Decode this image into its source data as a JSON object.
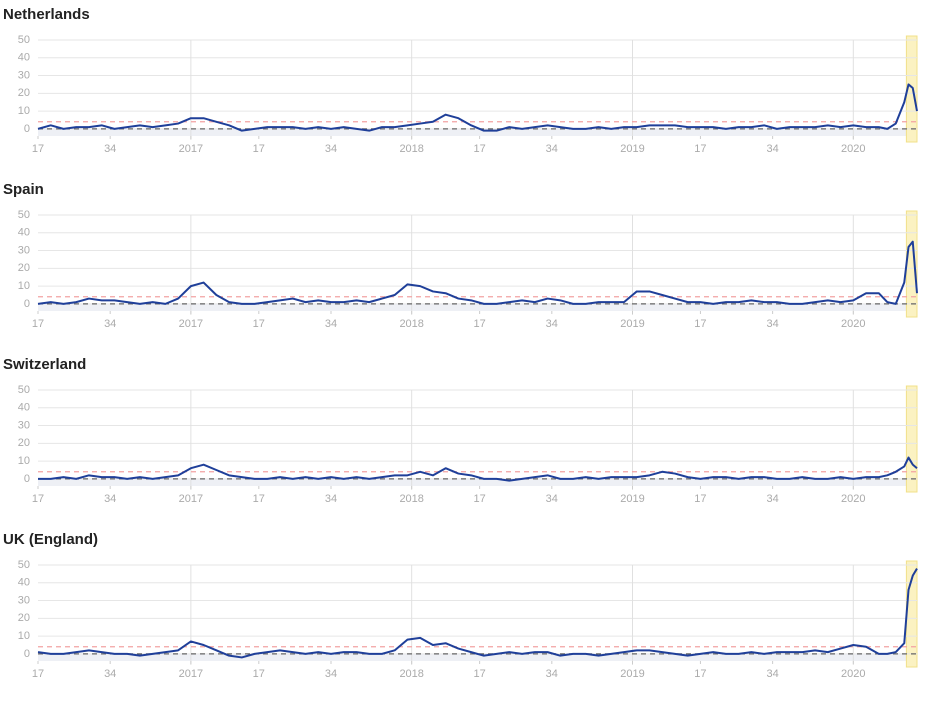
{
  "chart_data": [
    {
      "type": "line",
      "title": "Netherlands",
      "color": "#1f3f99",
      "xlim": [
        0,
        207
      ],
      "ylim": [
        -4,
        50
      ],
      "yticks": [
        0,
        10,
        20,
        30,
        40,
        50
      ],
      "grid": true,
      "xticks": [
        {
          "value": 0,
          "label": "17"
        },
        {
          "value": 17,
          "label": "34"
        },
        {
          "value": 36,
          "label": "2017"
        },
        {
          "value": 52,
          "label": "17"
        },
        {
          "value": 69,
          "label": "34"
        },
        {
          "value": 88,
          "label": "2018"
        },
        {
          "value": 104,
          "label": "17"
        },
        {
          "value": 121,
          "label": "34"
        },
        {
          "value": 140,
          "label": "2019"
        },
        {
          "value": 156,
          "label": "17"
        },
        {
          "value": 173,
          "label": "34"
        },
        {
          "value": 192,
          "label": "2020"
        }
      ],
      "xgrid": [
        36,
        88,
        140,
        192
      ],
      "shade_x": [
        204.5,
        207
      ],
      "shade_color": "#fbf2c2",
      "reference_lines": [
        {
          "value": 4,
          "color": "#f3a3a3"
        },
        {
          "value": 0,
          "color": "#666666"
        }
      ],
      "x": [
        0,
        3,
        6,
        9,
        12,
        15,
        18,
        21,
        24,
        27,
        30,
        33,
        36,
        39,
        42,
        45,
        48,
        51,
        54,
        57,
        60,
        63,
        66,
        69,
        72,
        75,
        78,
        81,
        84,
        87,
        90,
        93,
        96,
        99,
        102,
        105,
        108,
        111,
        114,
        117,
        120,
        123,
        126,
        129,
        132,
        135,
        138,
        141,
        144,
        147,
        150,
        153,
        156,
        159,
        162,
        165,
        168,
        171,
        174,
        177,
        180,
        183,
        186,
        189,
        192,
        195,
        198,
        200,
        202,
        204,
        205,
        206,
        207
      ],
      "values": [
        0,
        2,
        0,
        1,
        1,
        2,
        0,
        1,
        2,
        1,
        2,
        3,
        6,
        6,
        4,
        2,
        -1,
        0,
        1,
        1,
        1,
        0,
        1,
        0,
        1,
        0,
        -1,
        1,
        1,
        2,
        3,
        4,
        8,
        6,
        2,
        -1,
        -1,
        1,
        0,
        1,
        2,
        1,
        0,
        0,
        1,
        0,
        1,
        1,
        2,
        2,
        2,
        1,
        1,
        1,
        0,
        1,
        1,
        2,
        0,
        1,
        1,
        1,
        2,
        1,
        2,
        1,
        1,
        0,
        3,
        15,
        25,
        23,
        10
      ]
    },
    {
      "type": "line",
      "title": "Spain",
      "color": "#1f3f99",
      "xlim": [
        0,
        207
      ],
      "ylim": [
        -4,
        50
      ],
      "yticks": [
        0,
        10,
        20,
        30,
        40,
        50
      ],
      "grid": true,
      "xticks": [
        {
          "value": 0,
          "label": "17"
        },
        {
          "value": 17,
          "label": "34"
        },
        {
          "value": 36,
          "label": "2017"
        },
        {
          "value": 52,
          "label": "17"
        },
        {
          "value": 69,
          "label": "34"
        },
        {
          "value": 88,
          "label": "2018"
        },
        {
          "value": 104,
          "label": "17"
        },
        {
          "value": 121,
          "label": "34"
        },
        {
          "value": 140,
          "label": "2019"
        },
        {
          "value": 156,
          "label": "17"
        },
        {
          "value": 173,
          "label": "34"
        },
        {
          "value": 192,
          "label": "2020"
        }
      ],
      "xgrid": [
        36,
        88,
        140,
        192
      ],
      "shade_x": [
        204.5,
        207
      ],
      "shade_color": "#fbf2c2",
      "reference_lines": [
        {
          "value": 4,
          "color": "#f3a3a3"
        },
        {
          "value": 0,
          "color": "#666666"
        }
      ],
      "x": [
        0,
        3,
        6,
        9,
        12,
        15,
        18,
        21,
        24,
        27,
        30,
        33,
        36,
        39,
        42,
        45,
        48,
        51,
        54,
        57,
        60,
        63,
        66,
        69,
        72,
        75,
        78,
        81,
        84,
        87,
        90,
        93,
        96,
        99,
        102,
        105,
        108,
        111,
        114,
        117,
        120,
        123,
        126,
        129,
        132,
        135,
        138,
        141,
        144,
        147,
        150,
        153,
        156,
        159,
        162,
        165,
        168,
        171,
        174,
        177,
        180,
        183,
        186,
        189,
        192,
        195,
        198,
        200,
        202,
        204,
        205,
        206,
        207
      ],
      "values": [
        0,
        1,
        0,
        1,
        3,
        2,
        2,
        1,
        0,
        1,
        0,
        3,
        10,
        12,
        5,
        1,
        0,
        0,
        1,
        2,
        3,
        1,
        2,
        1,
        1,
        2,
        1,
        3,
        5,
        11,
        10,
        7,
        6,
        3,
        2,
        0,
        0,
        1,
        2,
        1,
        3,
        2,
        0,
        0,
        1,
        1,
        1,
        7,
        7,
        5,
        3,
        1,
        1,
        0,
        1,
        1,
        2,
        1,
        1,
        0,
        0,
        1,
        2,
        1,
        2,
        6,
        6,
        1,
        0,
        12,
        32,
        35,
        6
      ]
    },
    {
      "type": "line",
      "title": "Switzerland",
      "color": "#1f3f99",
      "xlim": [
        0,
        207
      ],
      "ylim": [
        -4,
        50
      ],
      "yticks": [
        0,
        10,
        20,
        30,
        40,
        50
      ],
      "grid": true,
      "xticks": [
        {
          "value": 0,
          "label": "17"
        },
        {
          "value": 17,
          "label": "34"
        },
        {
          "value": 36,
          "label": "2017"
        },
        {
          "value": 52,
          "label": "17"
        },
        {
          "value": 69,
          "label": "34"
        },
        {
          "value": 88,
          "label": "2018"
        },
        {
          "value": 104,
          "label": "17"
        },
        {
          "value": 121,
          "label": "34"
        },
        {
          "value": 140,
          "label": "2019"
        },
        {
          "value": 156,
          "label": "17"
        },
        {
          "value": 173,
          "label": "34"
        },
        {
          "value": 192,
          "label": "2020"
        }
      ],
      "xgrid": [
        36,
        88,
        140,
        192
      ],
      "shade_x": [
        204.5,
        207
      ],
      "shade_color": "#fbf2c2",
      "reference_lines": [
        {
          "value": 4,
          "color": "#f3a3a3"
        },
        {
          "value": 0,
          "color": "#666666"
        }
      ],
      "x": [
        0,
        3,
        6,
        9,
        12,
        15,
        18,
        21,
        24,
        27,
        30,
        33,
        36,
        39,
        42,
        45,
        48,
        51,
        54,
        57,
        60,
        63,
        66,
        69,
        72,
        75,
        78,
        81,
        84,
        87,
        90,
        93,
        96,
        99,
        102,
        105,
        108,
        111,
        114,
        117,
        120,
        123,
        126,
        129,
        132,
        135,
        138,
        141,
        144,
        147,
        150,
        153,
        156,
        159,
        162,
        165,
        168,
        171,
        174,
        177,
        180,
        183,
        186,
        189,
        192,
        195,
        198,
        200,
        202,
        204,
        205,
        206,
        207
      ],
      "values": [
        0,
        0,
        1,
        0,
        2,
        1,
        1,
        0,
        1,
        0,
        1,
        2,
        6,
        8,
        5,
        2,
        1,
        0,
        0,
        1,
        0,
        1,
        0,
        1,
        0,
        1,
        0,
        1,
        2,
        2,
        4,
        2,
        6,
        3,
        2,
        0,
        0,
        -1,
        0,
        1,
        2,
        0,
        0,
        1,
        0,
        1,
        1,
        1,
        2,
        4,
        3,
        1,
        0,
        1,
        1,
        0,
        1,
        1,
        0,
        0,
        1,
        0,
        0,
        1,
        0,
        1,
        1,
        2,
        4,
        7,
        12,
        8,
        6
      ]
    },
    {
      "type": "line",
      "title": "UK (England)",
      "color": "#1f3f99",
      "xlim": [
        0,
        207
      ],
      "ylim": [
        -4,
        50
      ],
      "yticks": [
        0,
        10,
        20,
        30,
        40,
        50
      ],
      "grid": true,
      "xticks": [
        {
          "value": 0,
          "label": "17"
        },
        {
          "value": 17,
          "label": "34"
        },
        {
          "value": 36,
          "label": "2017"
        },
        {
          "value": 52,
          "label": "17"
        },
        {
          "value": 69,
          "label": "34"
        },
        {
          "value": 88,
          "label": "2018"
        },
        {
          "value": 104,
          "label": "17"
        },
        {
          "value": 121,
          "label": "34"
        },
        {
          "value": 140,
          "label": "2019"
        },
        {
          "value": 156,
          "label": "17"
        },
        {
          "value": 173,
          "label": "34"
        },
        {
          "value": 192,
          "label": "2020"
        }
      ],
      "xgrid": [
        36,
        88,
        140,
        192
      ],
      "shade_x": [
        204.5,
        207
      ],
      "shade_color": "#fbf2c2",
      "reference_lines": [
        {
          "value": 4,
          "color": "#f3a3a3"
        },
        {
          "value": 0,
          "color": "#666666"
        }
      ],
      "x": [
        0,
        3,
        6,
        9,
        12,
        15,
        18,
        21,
        24,
        27,
        30,
        33,
        36,
        39,
        42,
        45,
        48,
        51,
        54,
        57,
        60,
        63,
        66,
        69,
        72,
        75,
        78,
        81,
        84,
        87,
        90,
        93,
        96,
        99,
        102,
        105,
        108,
        111,
        114,
        117,
        120,
        123,
        126,
        129,
        132,
        135,
        138,
        141,
        144,
        147,
        150,
        153,
        156,
        159,
        162,
        165,
        168,
        171,
        174,
        177,
        180,
        183,
        186,
        189,
        192,
        195,
        198,
        200,
        202,
        204,
        205,
        206,
        207
      ],
      "values": [
        1,
        0,
        0,
        1,
        2,
        1,
        0,
        0,
        -1,
        0,
        1,
        2,
        7,
        5,
        2,
        -1,
        -2,
        0,
        1,
        2,
        1,
        0,
        1,
        0,
        1,
        1,
        0,
        0,
        2,
        8,
        9,
        5,
        6,
        3,
        1,
        -1,
        0,
        1,
        0,
        1,
        1,
        -1,
        0,
        0,
        -1,
        0,
        1,
        2,
        2,
        1,
        0,
        -1,
        0,
        1,
        0,
        0,
        1,
        0,
        1,
        1,
        1,
        2,
        1,
        3,
        5,
        4,
        0,
        0,
        1,
        6,
        36,
        44,
        48
      ]
    }
  ]
}
